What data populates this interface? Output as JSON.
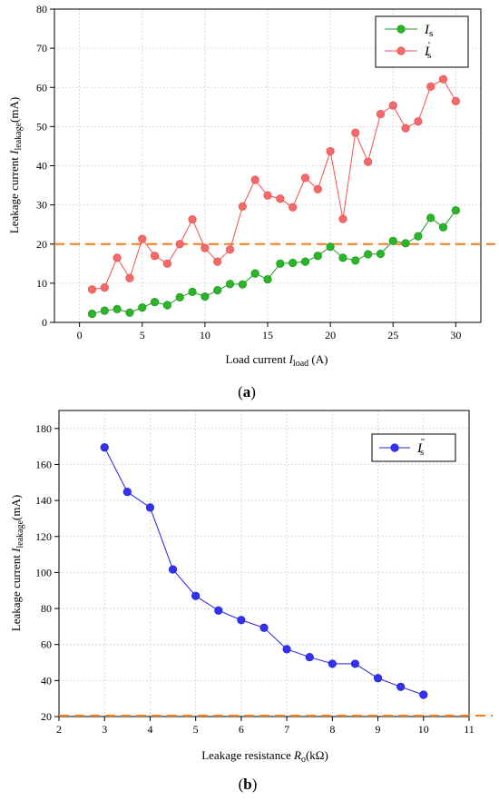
{
  "chart_data": [
    {
      "type": "line",
      "panel": "(a)",
      "caption_left": "(",
      "caption_letter": "a",
      "caption_right": ")",
      "xlabel_pre": "Load current ",
      "xlabel_var": "I",
      "xlabel_sub": "load",
      "xlabel_post": " (A)",
      "ylabel_pre": "Leakage current ",
      "ylabel_var": "I",
      "ylabel_sub": "leakage",
      "ylabel_post": "(mA)",
      "xlim": [
        -2,
        32
      ],
      "ylim": [
        0,
        80
      ],
      "xticks": [
        0,
        5,
        10,
        15,
        20,
        25,
        30
      ],
      "yticks": [
        0,
        10,
        20,
        30,
        40,
        50,
        60,
        70,
        80
      ],
      "grid": true,
      "legend_position": "top-right",
      "threshold": {
        "y": 20,
        "color": "#f07f1f",
        "style": "dashed"
      },
      "x": [
        1,
        2,
        3,
        4,
        5,
        6,
        7,
        8,
        9,
        10,
        11,
        12,
        13,
        14,
        15,
        16,
        17,
        18,
        19,
        20,
        21,
        22,
        23,
        24,
        25,
        26,
        27,
        28,
        29,
        30
      ],
      "series": [
        {
          "name_var": "I",
          "name_sub": "s",
          "name_mark": "",
          "color": "#1f9a1f",
          "marker_fill": "#2bb52b",
          "values": [
            2.2,
            3.0,
            3.4,
            2.5,
            3.8,
            5.2,
            4.4,
            6.4,
            7.8,
            6.6,
            8.2,
            9.8,
            9.7,
            12.5,
            11.0,
            15.0,
            15.2,
            15.5,
            17.0,
            19.3,
            16.5,
            15.8,
            17.4,
            17.5,
            20.8,
            20.2,
            22.0,
            26.7,
            24.3,
            28.6
          ]
        },
        {
          "name_var": "I",
          "name_sub": "s",
          "name_mark": "'",
          "color": "#f05050",
          "marker_fill": "#f26a6a",
          "values": [
            8.4,
            8.9,
            16.5,
            11.3,
            21.3,
            17.0,
            15.0,
            20.0,
            26.3,
            19.0,
            15.5,
            18.6,
            29.6,
            36.4,
            32.4,
            31.6,
            29.4,
            36.9,
            34.0,
            43.7,
            26.4,
            48.4,
            41.0,
            53.2,
            55.4,
            49.6,
            51.3,
            60.2,
            62.1,
            56.5
          ]
        }
      ]
    },
    {
      "type": "line",
      "panel": "(b)",
      "caption_left": "(",
      "caption_letter": "b",
      "caption_right": ")",
      "xlabel_pre": "Leakage resistance ",
      "xlabel_var": "R",
      "xlabel_sub": "o",
      "xlabel_post": "(kΩ)",
      "ylabel_pre": "Leakage current ",
      "ylabel_var": "I",
      "ylabel_sub": "leakage",
      "ylabel_post": "(mA)",
      "xlim": [
        2,
        11
      ],
      "ylim": [
        20,
        190
      ],
      "xticks": [
        2,
        3,
        4,
        5,
        6,
        7,
        8,
        9,
        10,
        11
      ],
      "yticks": [
        20,
        40,
        60,
        80,
        100,
        120,
        140,
        160,
        180
      ],
      "grid": true,
      "legend_position": "top-right",
      "threshold": {
        "y": 20.5,
        "color": "#f07f1f",
        "style": "dashed"
      },
      "x": [
        3,
        3.5,
        4,
        4.5,
        5,
        5.5,
        6,
        6.5,
        7,
        7.5,
        8,
        8.5,
        9,
        9.5,
        10
      ],
      "series": [
        {
          "name_var": "I",
          "name_sub": "s",
          "name_mark": "''",
          "color": "#2020e0",
          "marker_fill": "#3333ee",
          "values": [
            169.5,
            144.8,
            136.1,
            101.7,
            87.0,
            78.9,
            73.6,
            69.3,
            57.4,
            53.0,
            49.3,
            49.3,
            41.3,
            36.5,
            32.1
          ]
        }
      ]
    }
  ]
}
